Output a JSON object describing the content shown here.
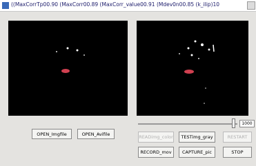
{
  "window": {
    "title": "((MaxCorrTp00.90 (MaxCorr00.89 (MaxCorr_value00.91 (Mdev0n00.85 (k_ilip)10"
  },
  "slider": {
    "value": "1000"
  },
  "buttons": {
    "open_img": "OPEN_Imgfile",
    "open_avi": "OPEN_Avifile",
    "read_color": "READimg_color",
    "test_gray": "TESTimg_gray",
    "restart": "RESTART",
    "record": "RECORD_mov",
    "capture": "CAPTURE_pic",
    "stop": "STOP"
  }
}
